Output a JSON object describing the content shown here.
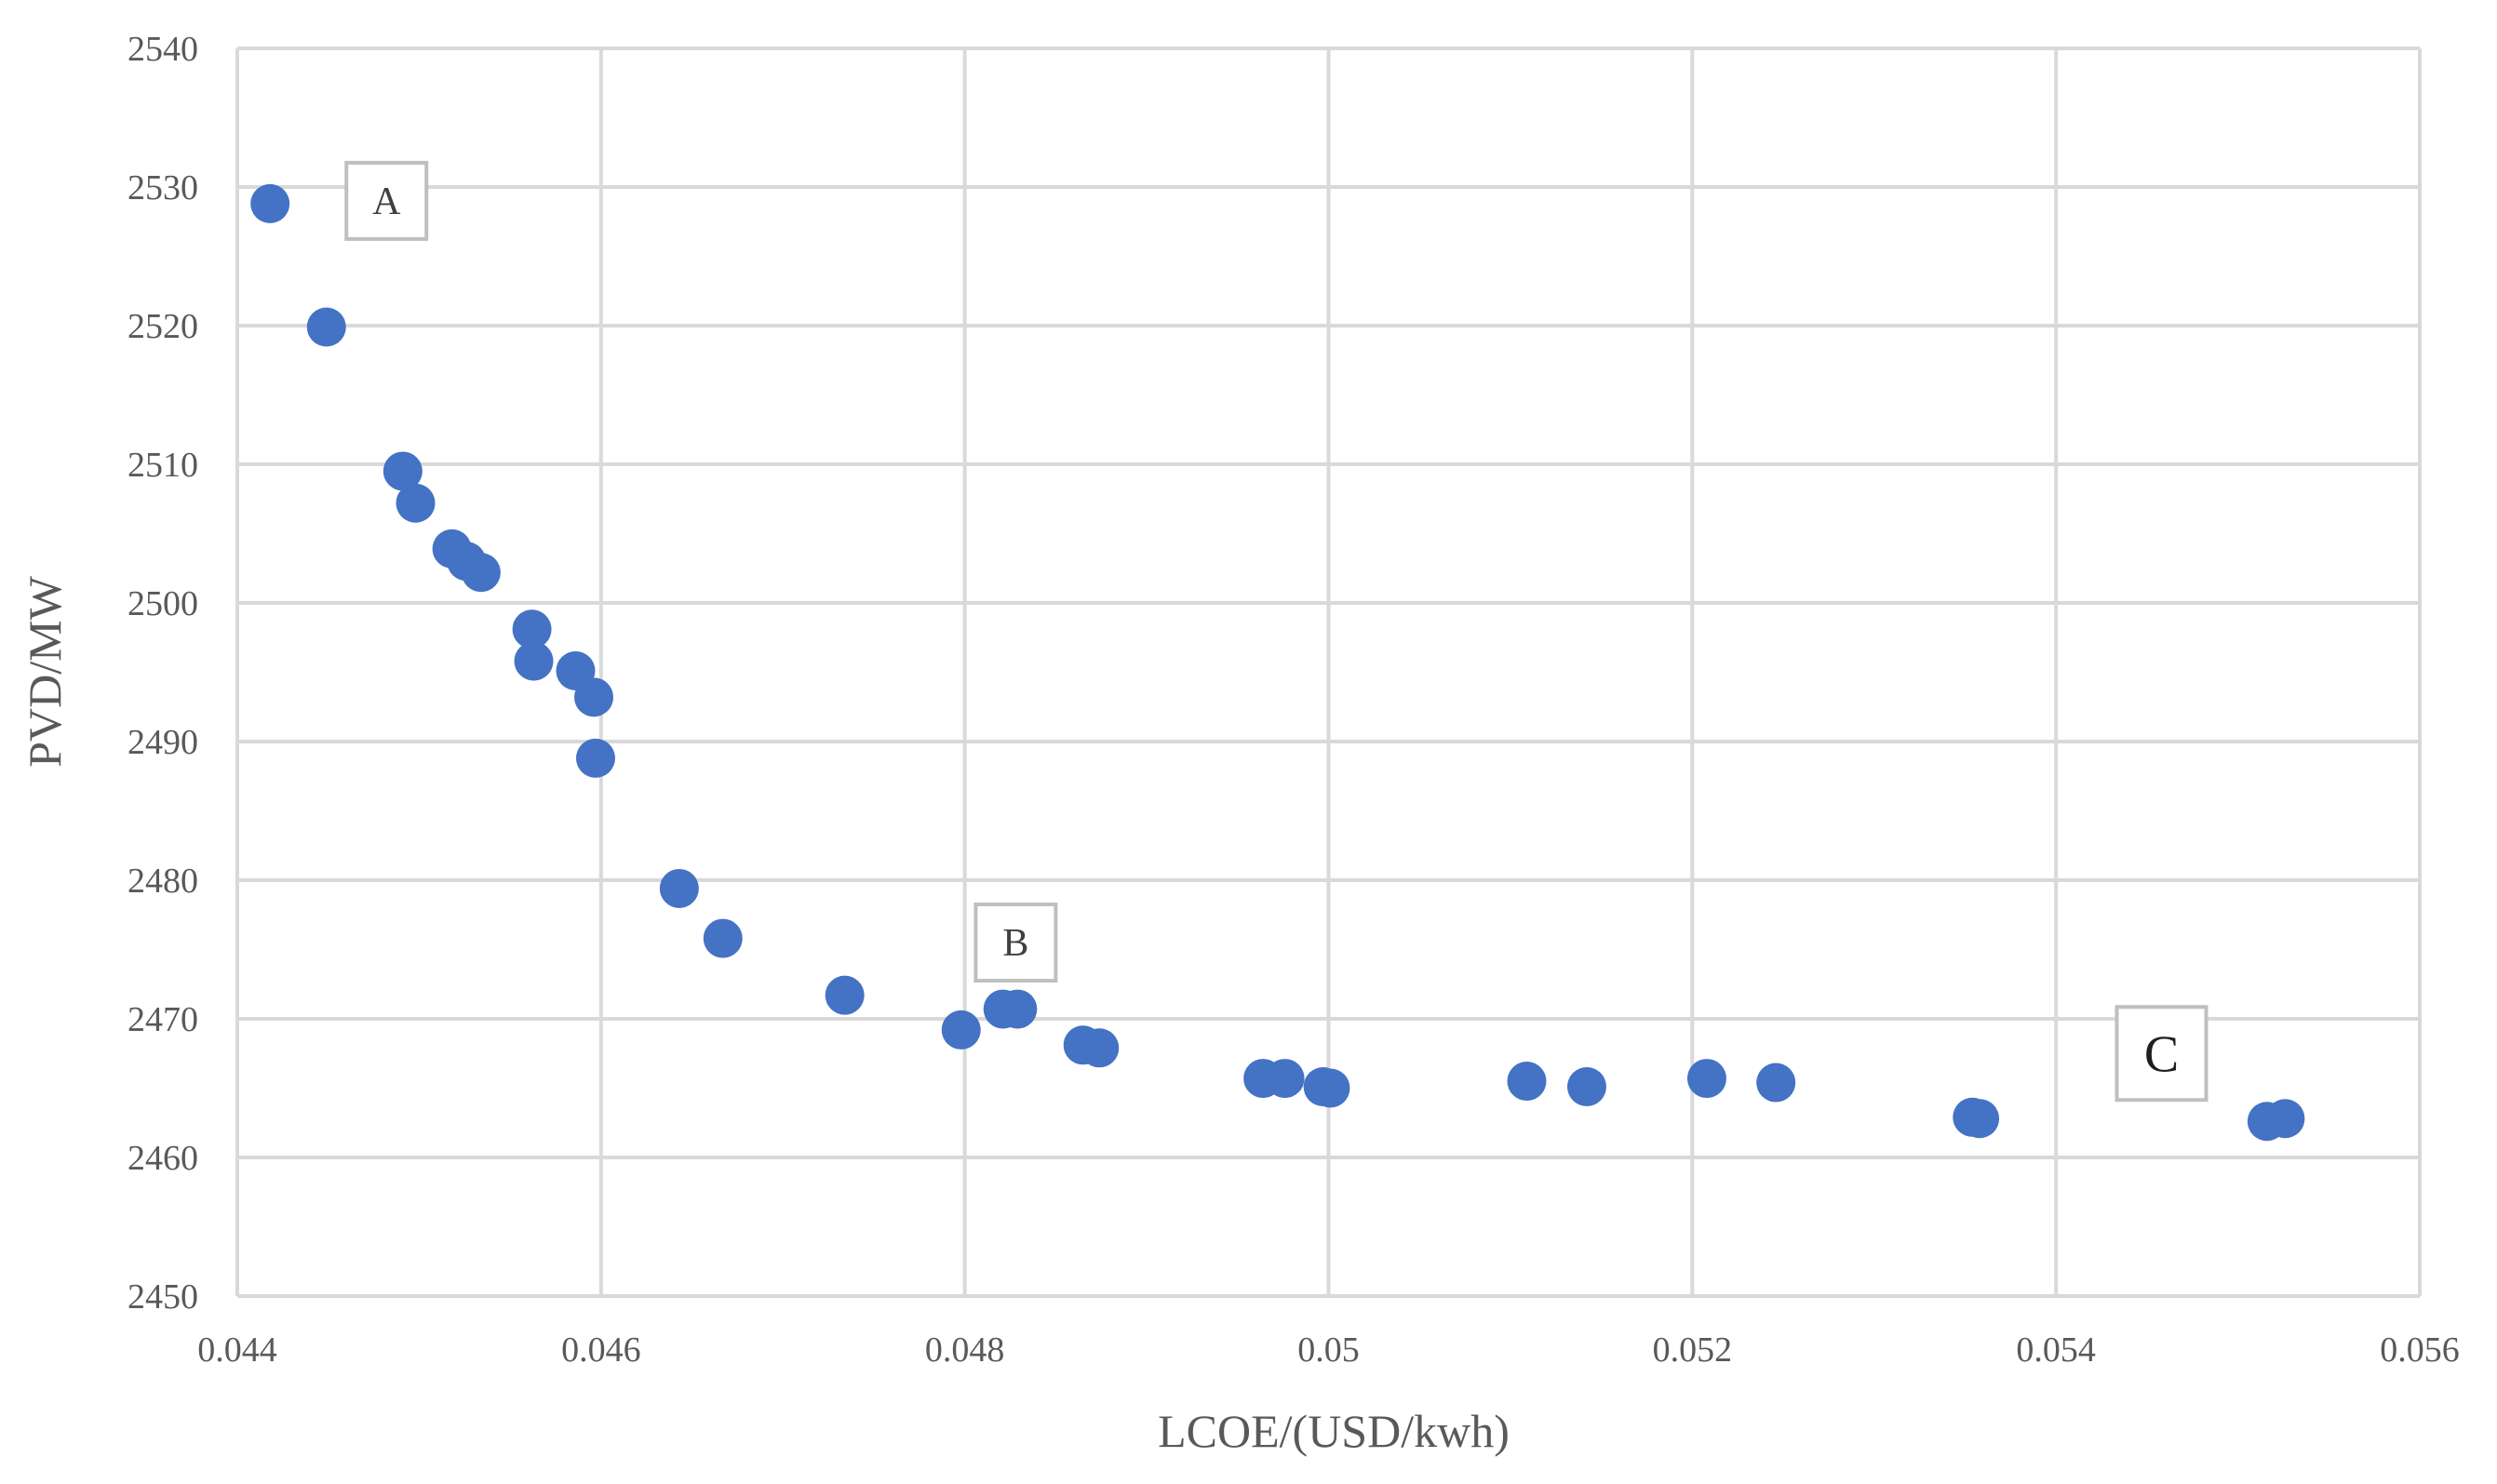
{
  "chart_data": {
    "type": "scatter",
    "title": "",
    "xlabel": "LCOE/(USD/kwh)",
    "ylabel": "PVD/MW",
    "xlim": [
      0.044,
      0.056
    ],
    "ylim": [
      2450,
      2540
    ],
    "x_ticks": [
      0.044,
      0.046,
      0.048,
      0.05,
      0.052,
      0.054,
      0.056
    ],
    "x_tick_labels": [
      "0.044",
      "0.046",
      "0.048",
      "0.05",
      "0.052",
      "0.054",
      "0.056"
    ],
    "y_ticks": [
      2450,
      2460,
      2470,
      2480,
      2490,
      2500,
      2510,
      2520,
      2530,
      2540
    ],
    "y_tick_labels": [
      "2450",
      "2460",
      "2470",
      "2480",
      "2490",
      "2500",
      "2510",
      "2520",
      "2530",
      "2540"
    ],
    "grid": true,
    "legend": "none",
    "marker_color": "#4472c4",
    "grid_color": "#d9d9d9",
    "series": [
      {
        "points": [
          {
            "x": 0.04418,
            "y": 2528.8
          },
          {
            "x": 0.04449,
            "y": 2519.9
          },
          {
            "x": 0.04491,
            "y": 2509.5
          },
          {
            "x": 0.04498,
            "y": 2507.2
          },
          {
            "x": 0.04518,
            "y": 2503.9
          },
          {
            "x": 0.04526,
            "y": 2503.0
          },
          {
            "x": 0.04534,
            "y": 2502.2
          },
          {
            "x": 0.04562,
            "y": 2498.1
          },
          {
            "x": 0.04563,
            "y": 2495.8
          },
          {
            "x": 0.04586,
            "y": 2495.1
          },
          {
            "x": 0.04596,
            "y": 2493.2
          },
          {
            "x": 0.04597,
            "y": 2488.8
          },
          {
            "x": 0.04643,
            "y": 2479.4
          },
          {
            "x": 0.04667,
            "y": 2475.8
          },
          {
            "x": 0.04734,
            "y": 2471.7
          },
          {
            "x": 0.04798,
            "y": 2469.2
          },
          {
            "x": 0.04821,
            "y": 2470.7
          },
          {
            "x": 0.04829,
            "y": 2470.7
          },
          {
            "x": 0.04865,
            "y": 2468.1
          },
          {
            "x": 0.04874,
            "y": 2467.9
          },
          {
            "x": 0.04964,
            "y": 2465.7
          },
          {
            "x": 0.04976,
            "y": 2465.7
          },
          {
            "x": 0.04997,
            "y": 2465.1
          },
          {
            "x": 0.05001,
            "y": 2465.0
          },
          {
            "x": 0.05109,
            "y": 2465.5
          },
          {
            "x": 0.05142,
            "y": 2465.1
          },
          {
            "x": 0.05208,
            "y": 2465.7
          },
          {
            "x": 0.05246,
            "y": 2465.4
          },
          {
            "x": 0.05354,
            "y": 2462.9
          },
          {
            "x": 0.05358,
            "y": 2462.8
          },
          {
            "x": 0.05516,
            "y": 2462.6
          },
          {
            "x": 0.05526,
            "y": 2462.8
          }
        ]
      }
    ],
    "annotations": [
      {
        "text": "A",
        "x": 0.04482,
        "y": 2529.0,
        "size": "normal"
      },
      {
        "text": "B",
        "x": 0.04828,
        "y": 2475.5,
        "size": "normal"
      },
      {
        "text": "C",
        "x": 0.05458,
        "y": 2467.5,
        "size": "large"
      }
    ]
  }
}
